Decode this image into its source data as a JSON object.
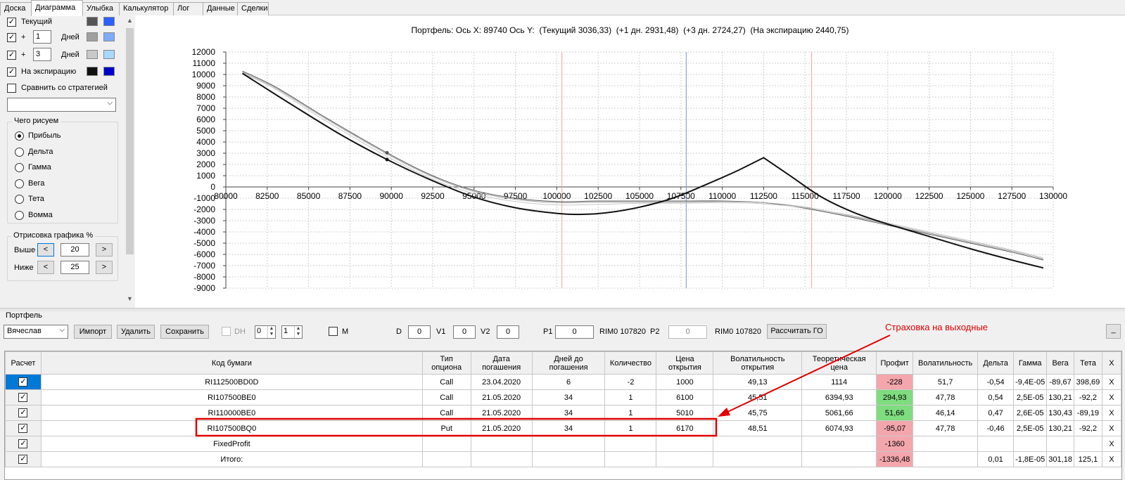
{
  "tabs": [
    {
      "label": "Доска",
      "active": false
    },
    {
      "label": "Диаграмма",
      "active": true
    },
    {
      "label": "Улыбка",
      "active": false
    },
    {
      "label": "Калькулятор",
      "active": false
    },
    {
      "label": "Лог",
      "active": false
    },
    {
      "label": "Данные",
      "active": false
    },
    {
      "label": "Сделки",
      "active": false
    }
  ],
  "left_panel": {
    "current": {
      "label": "Текущий",
      "checked": true,
      "colors": [
        "#555555",
        "#2b5fff"
      ]
    },
    "plus1": {
      "prefix": "+",
      "days": "1",
      "suffix": "Дней",
      "checked": true,
      "colors": [
        "#a0a0a0",
        "#7faaff"
      ]
    },
    "plus3": {
      "prefix": "+",
      "days": "3",
      "suffix": "Дней",
      "checked": true,
      "colors": [
        "#c8c8c8",
        "#a9d8ff"
      ]
    },
    "expiration": {
      "label": "На экспирацию",
      "checked": true,
      "colors": [
        "#111111",
        "#0000cc"
      ]
    },
    "compare": {
      "label": "Сравнить со стратегией",
      "checked": false
    },
    "compare_select": "",
    "draw_group": {
      "title": "Чего рисуем",
      "options": [
        {
          "label": "Прибыль",
          "checked": true
        },
        {
          "label": "Дельта",
          "checked": false
        },
        {
          "label": "Гамма",
          "checked": false
        },
        {
          "label": "Вега",
          "checked": false
        },
        {
          "label": "Тета",
          "checked": false
        },
        {
          "label": "Вомма",
          "checked": false
        }
      ]
    },
    "range_group": {
      "title": "Отрисовка графика %",
      "above_label": "Выше",
      "above_value": "20",
      "below_label": "Ниже",
      "below_value": "25",
      "dec": "<",
      "inc": ">"
    }
  },
  "chart_header": "Портфель: Ось X: 89740 Ось Y:  (Текущий 3036,33)  (+1 дн. 2931,48)  (+3 дн. 2724,27)  (На экспирацию 2440,75)",
  "chart_data": {
    "type": "line",
    "x_ticks": [
      "80000",
      "82500",
      "85000",
      "87500",
      "90000",
      "92500",
      "95000",
      "97500",
      "100000",
      "102500",
      "105000",
      "107500",
      "110000",
      "112500",
      "115000",
      "117500",
      "120000",
      "122500",
      "125000",
      "127500",
      "130000"
    ],
    "y_ticks": [
      "12000",
      "11000",
      "10000",
      "9000",
      "8000",
      "7000",
      "6000",
      "5000",
      "4000",
      "3000",
      "2000",
      "1000",
      "0",
      "-1000",
      "-2000",
      "-3000",
      "-4000",
      "-5000",
      "-6000",
      "-7000",
      "-8000",
      "-9000"
    ],
    "xlim": [
      80000,
      130000
    ],
    "ylim": [
      -9000,
      12000
    ],
    "grid": true,
    "cursor_x": 89740,
    "current_price": 107820,
    "range_markers": [
      100310,
      115400
    ],
    "series": [
      {
        "color": "#555555",
        "width": 1,
        "x": [
          81000,
          83000,
          86000,
          89740,
          92500,
          95000,
          97500,
          100000,
          102500,
          105000,
          107820,
          110000,
          112500,
          115000,
          117500,
          120000,
          122500,
          125000,
          127500,
          129400
        ],
        "y": [
          10300,
          8900,
          6200,
          3036,
          1000,
          -300,
          -1000,
          -1300,
          -1250,
          -1250,
          -1250,
          -1250,
          -1400,
          -1900,
          -2600,
          -3400,
          -4200,
          -5000,
          -5800,
          -6500
        ]
      },
      {
        "color": "#a0a0a0",
        "width": 1,
        "x": [
          81000,
          83000,
          86000,
          89740,
          92500,
          95000,
          97500,
          100000,
          102500,
          105000,
          107820,
          110000,
          112500,
          115000,
          117500,
          120000,
          122500,
          125000,
          127500,
          129400
        ],
        "y": [
          10200,
          8800,
          6100,
          2931,
          900,
          -400,
          -1100,
          -1400,
          -1350,
          -1350,
          -1350,
          -1300,
          -1400,
          -1800,
          -2500,
          -3300,
          -4100,
          -4900,
          -5700,
          -6400
        ]
      },
      {
        "color": "#c8c8c8",
        "width": 1,
        "x": [
          81000,
          83000,
          86000,
          89740,
          92500,
          95000,
          97500,
          100000,
          102500,
          105000,
          107820,
          110000,
          112500,
          115000,
          117500,
          120000,
          122500,
          125000,
          127500,
          129400
        ],
        "y": [
          10100,
          8700,
          5900,
          2724,
          700,
          -600,
          -1300,
          -1600,
          -1550,
          -1450,
          -1450,
          -1400,
          -1500,
          -1850,
          -2450,
          -3200,
          -4000,
          -4800,
          -5600,
          -6300
        ]
      },
      {
        "color": "#111111",
        "width": 2,
        "x": [
          81000,
          84000,
          87000,
          89740,
          92500,
          95000,
          97500,
          100000,
          101500,
          103000,
          105000,
          107000,
          109000,
          111000,
          112500,
          114000,
          116000,
          118000,
          120000,
          122500,
          125000,
          127500,
          129400
        ],
        "y": [
          10100,
          7300,
          4600,
          2440,
          550,
          -900,
          -1850,
          -2350,
          -2440,
          -2300,
          -1800,
          -1000,
          200,
          1500,
          2600,
          1100,
          -900,
          -2300,
          -3300,
          -4400,
          -5500,
          -6500,
          -7200
        ]
      }
    ],
    "cursor_points": [
      {
        "x": 89740,
        "y": 3036,
        "color": "#555555"
      },
      {
        "x": 89740,
        "y": 2440,
        "color": "#111111"
      }
    ]
  },
  "portfolio": {
    "group_title": "Портфель",
    "owner": "Вячеслав",
    "import_label": "Импорт",
    "delete_label": "Удалить",
    "save_label": "Сохранить",
    "dh_label": "DH",
    "dh_spin1": "0",
    "dh_spin2": "1",
    "m_label": "M",
    "d_label": "D",
    "d_value": "0",
    "v1_label": "V1",
    "v1_value": "0",
    "v2_label": "V2",
    "v2_value": "0",
    "p1_label": "P1",
    "p1_value": "0",
    "p1_instrument": "RIM0 107820",
    "p2_label": "P2",
    "p2_value": "0",
    "p2_instrument": "RIM0 107820",
    "calc_go_label": "Рассчитать ГО",
    "minimize_label": "_"
  },
  "grid": {
    "headers": [
      "Расчет",
      "Код бумаги",
      "Тип опциона",
      "Дата погашения",
      "Дней до погашения",
      "Количество",
      "Цена открытия",
      "Волатильность открытия",
      "Теоретическая цена",
      "Профит",
      "Волатильность",
      "Дельта",
      "Гамма",
      "Вега",
      "Тета",
      "X"
    ],
    "rows": [
      {
        "cells": [
          "RI112500BD0D",
          "Call",
          "23.04.2020",
          "6",
          "-2",
          "1000",
          "49,13",
          "1114",
          "-228",
          "51,7",
          "-0,54",
          "-9,4E-05",
          "-89,67",
          "398,69",
          "X"
        ],
        "profit_class": "red",
        "selected": true
      },
      {
        "cells": [
          "RI107500BE0",
          "Call",
          "21.05.2020",
          "34",
          "1",
          "6100",
          "45,51",
          "6394,93",
          "294,93",
          "47,78",
          "0,54",
          "2,5E-05",
          "130,21",
          "-92,2",
          "X"
        ],
        "profit_class": "green",
        "selected": false
      },
      {
        "cells": [
          "RI110000BE0",
          "Call",
          "21.05.2020",
          "34",
          "1",
          "5010",
          "45,75",
          "5061,66",
          "51,66",
          "46,14",
          "0,47",
          "2,6E-05",
          "130,43",
          "-89,19",
          "X"
        ],
        "profit_class": "green",
        "selected": false
      },
      {
        "cells": [
          "RI107500BQ0",
          "Put",
          "21.05.2020",
          "34",
          "1",
          "6170",
          "48,51",
          "6074,93",
          "-95,07",
          "47,78",
          "-0,46",
          "2,5E-05",
          "130,21",
          "-92,2",
          "X"
        ],
        "profit_class": "red",
        "selected": false
      },
      {
        "cells": [
          "FixedProfit",
          "",
          "",
          "",
          "",
          "",
          "",
          "",
          "-1360",
          "",
          "",
          "",
          "",
          "",
          "X"
        ],
        "profit_class": "red",
        "selected": false
      },
      {
        "cells": [
          "Итого:",
          "",
          "",
          "",
          "",
          "",
          "",
          "",
          "-1336,48",
          "",
          "0,01",
          "-1,8E-05",
          "301,18",
          "125,1",
          "X"
        ],
        "profit_class": "red",
        "selected": false
      }
    ]
  },
  "annotation": {
    "text": "Страховка на выходные",
    "color": "#e00000"
  }
}
